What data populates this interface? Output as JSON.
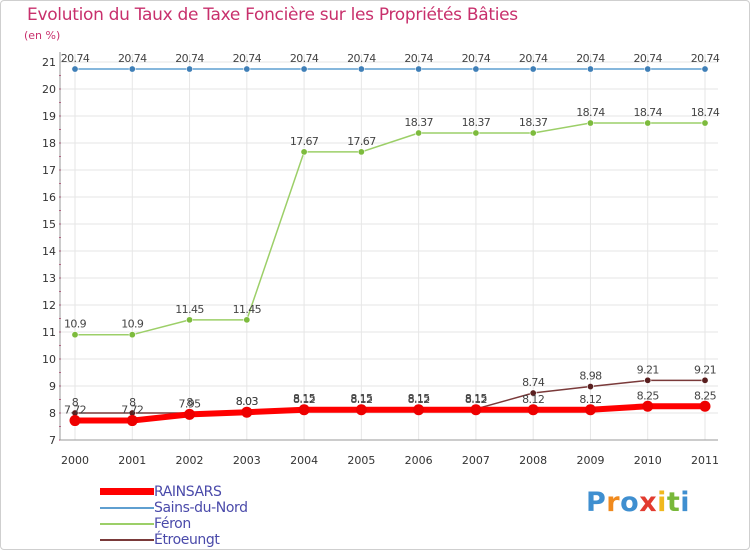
{
  "title": "Evolution du Taux de Taxe Foncière sur les Propriétés Bâties",
  "unit_label": "(en %)",
  "logo_text": "Proxiti",
  "colors": {
    "title": "#c8306c",
    "grid": "#e6e6e6",
    "axis_text": "#333333",
    "legend_text": "#4a4aaa",
    "axis_tick": "#c8306c"
  },
  "chart_data": {
    "type": "line",
    "title": "Evolution du Taux de Taxe Foncière sur les Propriétés Bâties",
    "ylabel": "(en %)",
    "xlabel": "",
    "ylim": [
      7,
      21
    ],
    "yticks": [
      7,
      8,
      9,
      10,
      11,
      12,
      13,
      14,
      15,
      16,
      17,
      18,
      19,
      20,
      21
    ],
    "categories": [
      "2000",
      "2001",
      "2002",
      "2003",
      "2004",
      "2005",
      "2006",
      "2007",
      "2008",
      "2009",
      "2010",
      "2011"
    ],
    "grid": true,
    "legend_position": "bottom-left",
    "series": [
      {
        "name": "Sains-du-Nord",
        "color": "#5f9fd0",
        "marker": "#3f7fb7",
        "width": 1.5,
        "values": [
          20.74,
          20.74,
          20.74,
          20.74,
          20.74,
          20.74,
          20.74,
          20.74,
          20.74,
          20.74,
          20.74,
          20.74
        ],
        "labels": [
          "20.74",
          "20.74",
          "20.74",
          "20.74",
          "20.74",
          "20.74",
          "20.74",
          "20.74",
          "20.74",
          "20.74",
          "20.74",
          "20.74"
        ]
      },
      {
        "name": "Féron",
        "color": "#9ccf68",
        "marker": "#7dbb3d",
        "width": 1.5,
        "values": [
          10.9,
          10.9,
          11.45,
          11.45,
          17.67,
          17.67,
          18.37,
          18.37,
          18.37,
          18.74,
          18.74,
          18.74
        ],
        "labels": [
          "10.9",
          "10.9",
          "11.45",
          "11.45",
          "17.67",
          "17.67",
          "18.37",
          "18.37",
          "18.37",
          "18.74",
          "18.74",
          "18.74"
        ]
      },
      {
        "name": "Étroeungt",
        "color": "#7a3a3a",
        "marker": "#5a1f1f",
        "width": 1.5,
        "values": [
          8,
          8,
          8,
          8.03,
          8.15,
          8.15,
          8.15,
          8.15,
          8.74,
          8.98,
          9.21,
          9.21
        ],
        "labels": [
          "8",
          "8",
          "8",
          "8.03",
          "8.15",
          "8.15",
          "8.15",
          "8.15",
          "8.74",
          "8.98",
          "9.21",
          "9.21"
        ]
      },
      {
        "name": "RAINSARS",
        "color": "#ff0000",
        "marker": "#ee0000",
        "width": 6,
        "values": [
          7.72,
          7.72,
          7.95,
          8.03,
          8.12,
          8.12,
          8.12,
          8.12,
          8.12,
          8.12,
          8.25,
          8.25
        ],
        "labels": [
          "7.72",
          "7.72",
          "7.95",
          "8.03",
          "8.12",
          "8.12",
          "8.12",
          "8.12",
          "8.12",
          "8.12",
          "8.25",
          "8.25"
        ]
      }
    ],
    "legend_order": [
      "RAINSARS",
      "Sains-du-Nord",
      "Féron",
      "Étroeungt"
    ]
  }
}
